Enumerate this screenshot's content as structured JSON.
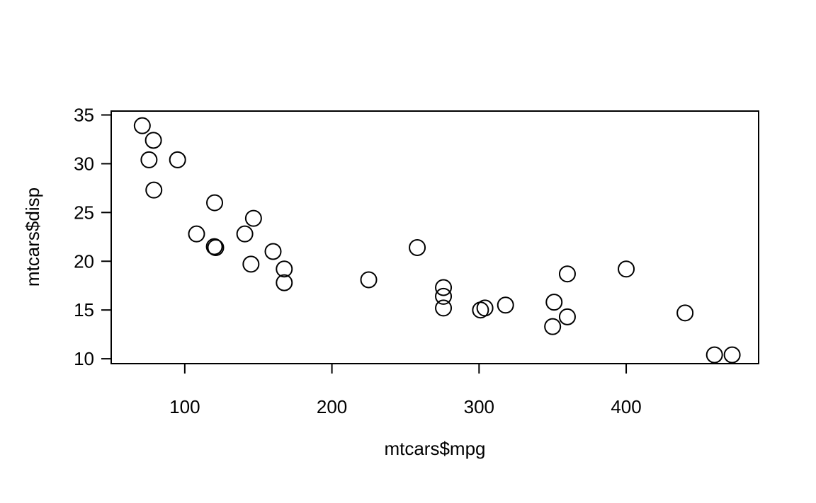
{
  "chart_data": {
    "type": "scatter",
    "title": "",
    "xlabel": "mtcars$mpg",
    "ylabel": "mtcars$disp",
    "xlim": [
      50,
      490
    ],
    "ylim": [
      9.5,
      35.4
    ],
    "x_ticks": [
      100,
      200,
      300,
      400
    ],
    "y_ticks": [
      10,
      15,
      20,
      25,
      30,
      35
    ],
    "grid": false,
    "legend": "none",
    "marker": "open-circle",
    "points": [
      {
        "x": 71.1,
        "y": 33.9
      },
      {
        "x": 78.7,
        "y": 32.4
      },
      {
        "x": 75.7,
        "y": 30.4
      },
      {
        "x": 95.1,
        "y": 30.4
      },
      {
        "x": 79.0,
        "y": 27.3
      },
      {
        "x": 120.3,
        "y": 26.0
      },
      {
        "x": 108.0,
        "y": 22.8
      },
      {
        "x": 146.7,
        "y": 24.4
      },
      {
        "x": 140.8,
        "y": 22.8
      },
      {
        "x": 121.0,
        "y": 21.4
      },
      {
        "x": 120.1,
        "y": 21.5
      },
      {
        "x": 160.0,
        "y": 21.0
      },
      {
        "x": 145.0,
        "y": 19.7
      },
      {
        "x": 167.6,
        "y": 19.2
      },
      {
        "x": 167.6,
        "y": 17.8
      },
      {
        "x": 225.0,
        "y": 18.1
      },
      {
        "x": 258.0,
        "y": 21.4
      },
      {
        "x": 275.8,
        "y": 17.3
      },
      {
        "x": 275.8,
        "y": 16.4
      },
      {
        "x": 275.8,
        "y": 15.2
      },
      {
        "x": 301.0,
        "y": 15.0
      },
      {
        "x": 304.0,
        "y": 15.2
      },
      {
        "x": 318.0,
        "y": 15.5
      },
      {
        "x": 350.0,
        "y": 13.3
      },
      {
        "x": 351.0,
        "y": 15.8
      },
      {
        "x": 360.0,
        "y": 18.7
      },
      {
        "x": 360.0,
        "y": 14.3
      },
      {
        "x": 400.0,
        "y": 19.2
      },
      {
        "x": 440.0,
        "y": 14.7
      },
      {
        "x": 460.0,
        "y": 10.4
      },
      {
        "x": 472.0,
        "y": 10.4
      }
    ]
  }
}
